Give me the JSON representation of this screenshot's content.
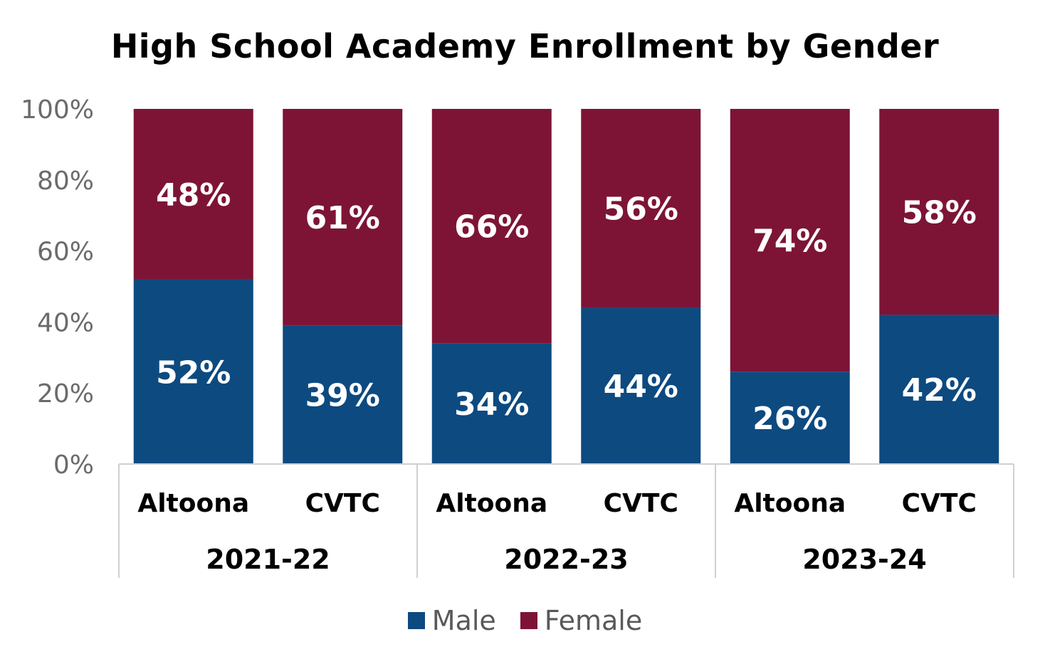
{
  "chart_data": {
    "type": "bar",
    "stacked": true,
    "title": "High School Academy Enrollment by Gender",
    "y_ticks": [
      "0%",
      "20%",
      "40%",
      "60%",
      "80%",
      "100%"
    ],
    "ylim": [
      0,
      100
    ],
    "categories": [
      "Altoona",
      "CVTC",
      "Altoona",
      "CVTC",
      "Altoona",
      "CVTC"
    ],
    "groups": [
      {
        "label": "2021-22",
        "span": 2
      },
      {
        "label": "2022-23",
        "span": 2
      },
      {
        "label": "2023-24",
        "span": 2
      }
    ],
    "series": [
      {
        "name": "Male",
        "color": "#0d4a80",
        "values": [
          52,
          39,
          34,
          44,
          26,
          42
        ],
        "labels": [
          "52%",
          "39%",
          "34%",
          "44%",
          "26%",
          "42%"
        ]
      },
      {
        "name": "Female",
        "color": "#7d1436",
        "values": [
          48,
          61,
          66,
          56,
          74,
          58
        ],
        "labels": [
          "48%",
          "61%",
          "66%",
          "56%",
          "74%",
          "58%"
        ]
      }
    ],
    "legend_position": "bottom",
    "grid": false
  }
}
